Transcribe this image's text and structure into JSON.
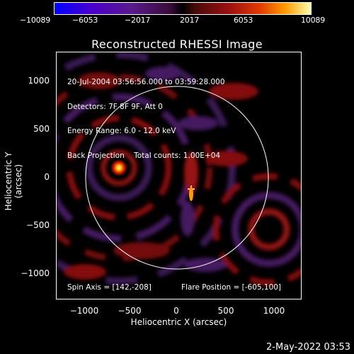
{
  "colorbar": {
    "ticks": [
      "−10089",
      "−6053",
      "−2017",
      "2017",
      "6053",
      "10089"
    ]
  },
  "title": "Reconstructed RHESSI Image",
  "info_lines": [
    "20-Jul-2004 03:56:56.000 to 03:59:28.000",
    "Detectors: 7F 8F 9F, Att 0",
    "Energy Range: 6.0 - 12.0 keV",
    "Back Projection    Total counts: 1.00E+04"
  ],
  "spin_axis": "Spin Axis = [142,-208]",
  "flare_position": "Flare Position = [-605,100]",
  "y_ticks": [
    "1000",
    "500",
    "0",
    "−500",
    "−1000"
  ],
  "x_ticks": [
    "−1000",
    "−500",
    "0",
    "500",
    "1000"
  ],
  "xlabel": "Heliocentric X (arcsec)",
  "ylabel": "Heliocentric Y (arcsec)",
  "date_stamp": "2-May-2022 03:53",
  "colors": {
    "background": "#000000",
    "foreground": "#ffffff"
  }
}
